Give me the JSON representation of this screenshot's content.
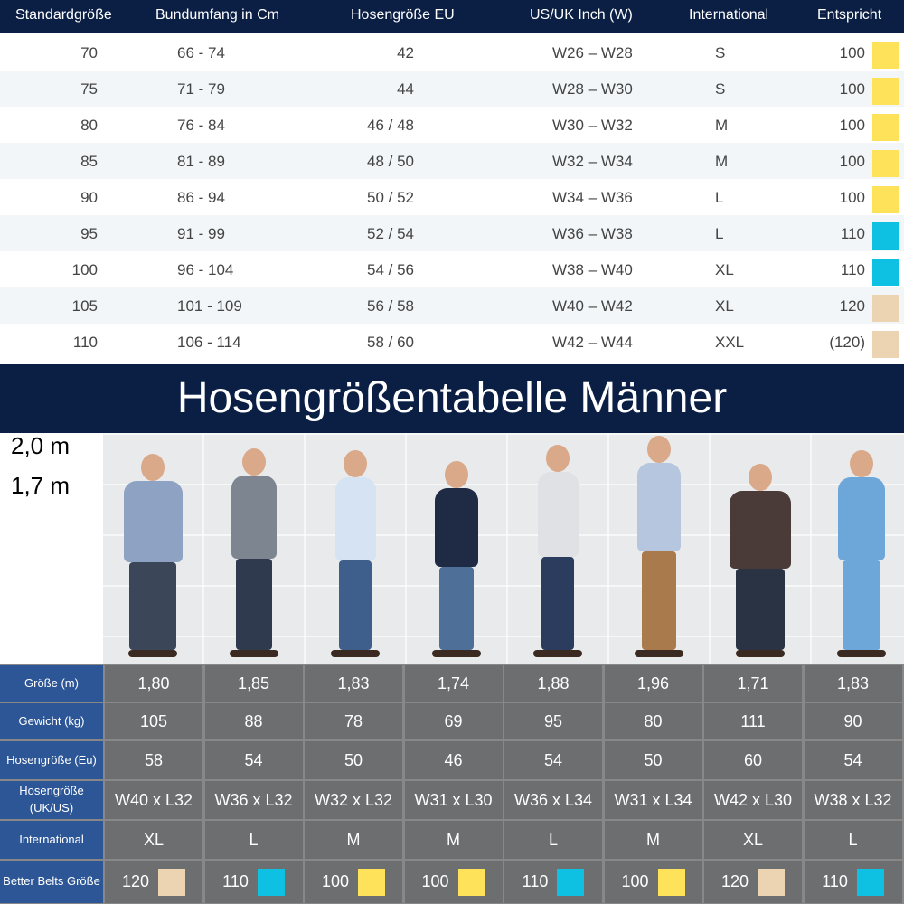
{
  "size_table": {
    "headers": [
      "Standardgröße",
      "Bundumfang in Cm",
      "Hosengröße EU",
      "US/UK Inch (W)",
      "International",
      "Entspricht"
    ],
    "rows": [
      {
        "std": "70",
        "bund": "66 - 74",
        "eu": "42",
        "us": "W26 – W28",
        "intl": "S",
        "ent": "100",
        "color": "#fde25a"
      },
      {
        "std": "75",
        "bund": "71 - 79",
        "eu": "44",
        "us": "W28 – W30",
        "intl": "S",
        "ent": "100",
        "color": "#fde25a"
      },
      {
        "std": "80",
        "bund": "76 - 84",
        "eu": "46 / 48",
        "us": "W30 – W32",
        "intl": "M",
        "ent": "100",
        "color": "#fde25a"
      },
      {
        "std": "85",
        "bund": "81 - 89",
        "eu": "48 / 50",
        "us": "W32 – W34",
        "intl": "M",
        "ent": "100",
        "color": "#fde25a"
      },
      {
        "std": "90",
        "bund": "86 - 94",
        "eu": "50 / 52",
        "us": "W34 – W36",
        "intl": "L",
        "ent": "100",
        "color": "#fde25a"
      },
      {
        "std": "95",
        "bund": "91 - 99",
        "eu": "52 / 54",
        "us": "W36 – W38",
        "intl": "L",
        "ent": "110",
        "color": "#0ec0e2"
      },
      {
        "std": "100",
        "bund": "96 - 104",
        "eu": "54 / 56",
        "us": "W38 – W40",
        "intl": "XL",
        "ent": "110",
        "color": "#0ec0e2"
      },
      {
        "std": "105",
        "bund": "101 - 109",
        "eu": "56 / 58",
        "us": "W40 – W42",
        "intl": "XL",
        "ent": "120",
        "color": "#ecd3b2"
      },
      {
        "std": "110",
        "bund": "106 - 114",
        "eu": "58 / 60",
        "us": "W42 – W44",
        "intl": "XXL",
        "ent": "(120)",
        "color": "#ecd3b2"
      }
    ]
  },
  "banner": {
    "title": "Hosengrößentabelle Männer"
  },
  "height_markers": [
    "2,0 m",
    "1,7 m"
  ],
  "people": [
    {
      "shirt": "#8ea3c4",
      "pants": "#3b4658",
      "build": 1.3
    },
    {
      "shirt": "#7d8590",
      "pants": "#2f3a4e",
      "build": 1.0
    },
    {
      "shirt": "#d6e3f2",
      "pants": "#3e5f8c",
      "build": 0.9
    },
    {
      "shirt": "#1f2a44",
      "pants": "#4d6f98",
      "build": 0.95
    },
    {
      "shirt": "#dfe1e4",
      "pants": "#2b3c5e",
      "build": 0.9
    },
    {
      "shirt": "#b6c6df",
      "pants": "#a97a4c",
      "build": 0.95
    },
    {
      "shirt": "#4a3a38",
      "pants": "#2a3344",
      "build": 1.35
    },
    {
      "shirt": "#6da6d8",
      "pants": "#6da6d8",
      "build": 1.05
    }
  ],
  "measure_table": {
    "rows": [
      {
        "label": "Größe (m)",
        "values": [
          "1,80",
          "1,85",
          "1,83",
          "1,74",
          "1,88",
          "1,96",
          "1,71",
          "1,83"
        ]
      },
      {
        "label": "Gewicht (kg)",
        "values": [
          "105",
          "88",
          "78",
          "69",
          "95",
          "80",
          "111",
          "90"
        ]
      },
      {
        "label": "Hosengröße (Eu)",
        "values": [
          "58",
          "54",
          "50",
          "46",
          "54",
          "50",
          "60",
          "54"
        ]
      },
      {
        "label": "Hosengröße (UK/US)",
        "values": [
          "W40 x L32",
          "W36 x L32",
          "W32 x L32",
          "W31 x L30",
          "W36 x L34",
          "W31 x L34",
          "W42 x L30",
          "W38 x L32"
        ]
      },
      {
        "label": "International",
        "values": [
          "XL",
          "L",
          "M",
          "M",
          "L",
          "M",
          "XL",
          "L"
        ]
      },
      {
        "label": "Better Belts Größe",
        "values": [
          "120",
          "110",
          "100",
          "100",
          "110",
          "100",
          "120",
          "110"
        ]
      }
    ],
    "belt_colors": [
      "#ecd3b2",
      "#0ec0e2",
      "#fde25a",
      "#fde25a",
      "#0ec0e2",
      "#fde25a",
      "#ecd3b2",
      "#0ec0e2"
    ]
  }
}
